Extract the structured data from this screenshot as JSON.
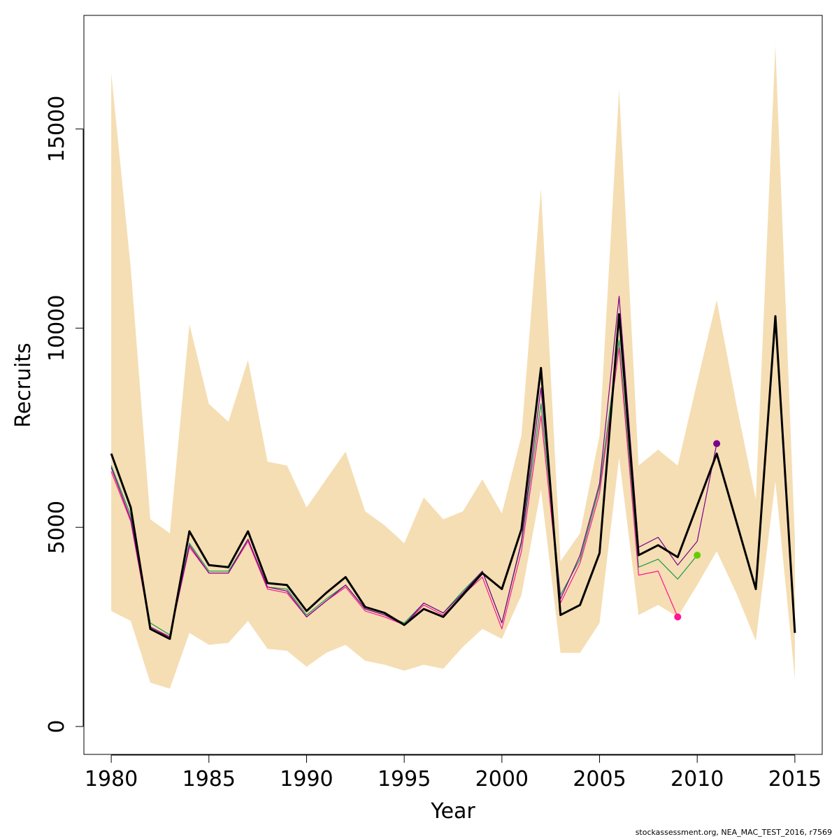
{
  "chart_data": {
    "type": "line",
    "xlabel": "Year",
    "ylabel": "Recruits",
    "xlim": [
      1978.6,
      2016.4
    ],
    "ylim": [
      -700,
      17850
    ],
    "x_ticks": [
      1980,
      1985,
      1990,
      1995,
      2000,
      2005,
      2010,
      2015
    ],
    "y_ticks": [
      0,
      5000,
      10000,
      15000
    ],
    "grid": false,
    "legend": "none",
    "band": {
      "color": "#f5deb3",
      "x": [
        1980,
        1981,
        1982,
        1983,
        1984,
        1985,
        1986,
        1987,
        1988,
        1989,
        1990,
        1991,
        1992,
        1993,
        1994,
        1995,
        1996,
        1997,
        1998,
        1999,
        2000,
        2001,
        2002,
        2003,
        2004,
        2005,
        2006,
        2007,
        2008,
        2009,
        2010,
        2011,
        2012,
        2013,
        2014,
        2015
      ],
      "upper": [
        16400,
        11500,
        5200,
        4850,
        10100,
        8100,
        7650,
        9200,
        6650,
        6550,
        5500,
        6200,
        6900,
        5400,
        5050,
        4600,
        5750,
        5200,
        5400,
        6200,
        5350,
        7300,
        13500,
        4150,
        4850,
        7300,
        16000,
        6550,
        6950,
        6550,
        8650,
        10700,
        8100,
        5700,
        17100,
        4700
      ],
      "lower": [
        2900,
        2650,
        1100,
        950,
        2350,
        2050,
        2100,
        2650,
        1950,
        1900,
        1500,
        1850,
        2050,
        1650,
        1550,
        1400,
        1550,
        1450,
        2000,
        2450,
        2200,
        3300,
        5950,
        1850,
        1850,
        2600,
        6750,
        2800,
        3050,
        2750,
        3550,
        4400,
        3350,
        2150,
        6150,
        1200
      ]
    },
    "series": [
      {
        "color": "#000000",
        "x": [
          1980,
          1981,
          1982,
          1983,
          1984,
          1985,
          1986,
          1987,
          1988,
          1989,
          1990,
          1991,
          1992,
          1993,
          1994,
          1995,
          1996,
          1997,
          1998,
          1999,
          2000,
          2001,
          2002,
          2003,
          2004,
          2005,
          2006,
          2007,
          2008,
          2009,
          2010,
          2011,
          2012,
          2013,
          2014,
          2015
        ],
        "values": [
          6850,
          5500,
          2450,
          2200,
          4900,
          4050,
          4000,
          4900,
          3600,
          3550,
          2900,
          3350,
          3750,
          3000,
          2850,
          2550,
          2950,
          2750,
          3300,
          3850,
          3450,
          4950,
          9000,
          2800,
          3050,
          4350,
          10350,
          4300,
          4550,
          4250,
          5550,
          6850,
          5150,
          3450,
          10300,
          2350
        ]
      },
      {
        "color": "#1a9850",
        "x": [
          1980,
          1981,
          1982,
          1983,
          1984,
          1985,
          1986,
          1987,
          1988,
          1989,
          1990,
          1991,
          1992,
          1993,
          1994,
          1995,
          1996,
          1997,
          1998,
          1999,
          2000,
          2001,
          2002,
          2003,
          2004,
          2005,
          2006,
          2007,
          2008,
          2009,
          2010
        ],
        "values": [
          6550,
          5300,
          2600,
          2300,
          4600,
          3900,
          3900,
          4700,
          3500,
          3450,
          2800,
          3200,
          3550,
          2950,
          2800,
          2600,
          3100,
          2850,
          3400,
          3900,
          2600,
          4600,
          8100,
          3300,
          4200,
          6000,
          9700,
          4000,
          4200,
          3700,
          4300
        ]
      },
      {
        "color": "#ff1493",
        "x": [
          1980,
          1981,
          1982,
          1983,
          1984,
          1985,
          1986,
          1987,
          1988,
          1989,
          1990,
          1991,
          1992,
          1993,
          1994,
          1995,
          1996,
          1997,
          1998,
          1999,
          2000,
          2001,
          2002,
          2003,
          2004,
          2005,
          2006,
          2007,
          2008,
          2009
        ],
        "values": [
          6400,
          5150,
          2450,
          2250,
          4500,
          3850,
          3850,
          4650,
          3450,
          3350,
          2750,
          3150,
          3500,
          2900,
          2750,
          2550,
          3050,
          2800,
          3300,
          3750,
          2450,
          4400,
          7800,
          3100,
          4100,
          5850,
          9500,
          3800,
          3900,
          2750
        ]
      },
      {
        "color": "#7b008b",
        "x": [
          1980,
          1981,
          1982,
          1983,
          1984,
          1985,
          1986,
          1987,
          1988,
          1989,
          1990,
          1991,
          1992,
          1993,
          1994,
          1995,
          1996,
          1997,
          1998,
          1999,
          2000,
          2001,
          2002,
          2003,
          2004,
          2005,
          2006,
          2007,
          2008,
          2009,
          2010,
          2011
        ],
        "values": [
          6500,
          5200,
          2500,
          2250,
          4550,
          3850,
          3850,
          4700,
          3500,
          3400,
          2750,
          3150,
          3550,
          2950,
          2800,
          2550,
          3100,
          2850,
          3350,
          3900,
          2600,
          4650,
          8500,
          3200,
          4300,
          6100,
          10800,
          4500,
          4750,
          4050,
          4650,
          7100
        ]
      }
    ],
    "end_points": [
      {
        "x": 2009,
        "y": 2750,
        "color": "#ff1493"
      },
      {
        "x": 2010,
        "y": 4300,
        "color": "#66cc00"
      },
      {
        "x": 2011,
        "y": 7100,
        "color": "#7b008b"
      }
    ]
  },
  "footnote": "stockassessment.org, NEA_MAC_TEST_2016, r7569"
}
